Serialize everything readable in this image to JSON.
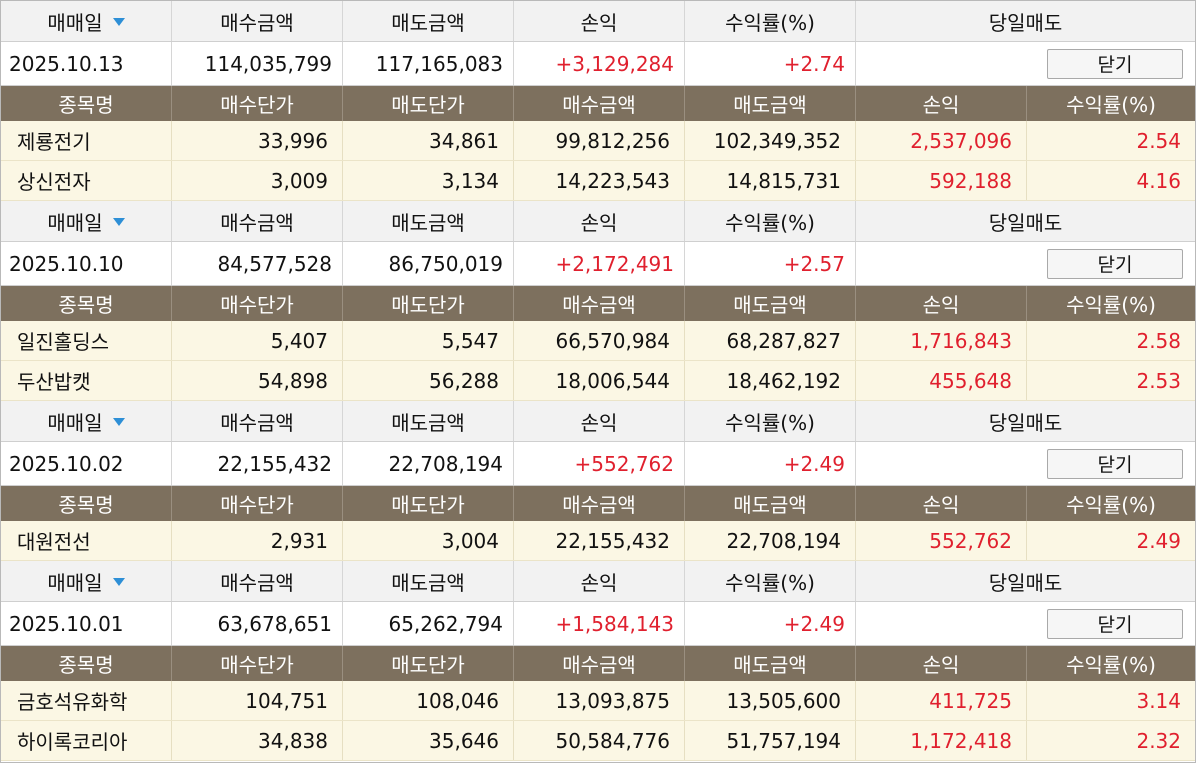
{
  "columns": {
    "trade_date": "매매일",
    "buy_amount": "매수금액",
    "sell_amount": "매도금액",
    "pnl": "손익",
    "return_pct": "수익률(%)",
    "same_day_sell": "당일매도",
    "stock_name": "종목명",
    "buy_price": "매수단가",
    "sell_price": "매도단가"
  },
  "close_label": "닫기",
  "colors": {
    "header_bg": "#f2f2f2",
    "detail_header_bg": "#7d705e",
    "item_bg": "#fbf7e4",
    "profit": "#e0202e",
    "sort_icon": "#2e8fd6"
  },
  "groups": [
    {
      "date": "2025.10.13",
      "buy_amount": "114,035,799",
      "sell_amount": "117,165,083",
      "pnl": "+3,129,284",
      "return_pct": "+2.74",
      "items": [
        {
          "name": "제룡전기",
          "buy_price": "33,996",
          "sell_price": "34,861",
          "buy_amount": "99,812,256",
          "sell_amount": "102,349,352",
          "pnl": "2,537,096",
          "return_pct": "2.54"
        },
        {
          "name": "상신전자",
          "buy_price": "3,009",
          "sell_price": "3,134",
          "buy_amount": "14,223,543",
          "sell_amount": "14,815,731",
          "pnl": "592,188",
          "return_pct": "4.16"
        }
      ]
    },
    {
      "date": "2025.10.10",
      "buy_amount": "84,577,528",
      "sell_amount": "86,750,019",
      "pnl": "+2,172,491",
      "return_pct": "+2.57",
      "items": [
        {
          "name": "일진홀딩스",
          "buy_price": "5,407",
          "sell_price": "5,547",
          "buy_amount": "66,570,984",
          "sell_amount": "68,287,827",
          "pnl": "1,716,843",
          "return_pct": "2.58"
        },
        {
          "name": "두산밥캣",
          "buy_price": "54,898",
          "sell_price": "56,288",
          "buy_amount": "18,006,544",
          "sell_amount": "18,462,192",
          "pnl": "455,648",
          "return_pct": "2.53"
        }
      ]
    },
    {
      "date": "2025.10.02",
      "buy_amount": "22,155,432",
      "sell_amount": "22,708,194",
      "pnl": "+552,762",
      "return_pct": "+2.49",
      "items": [
        {
          "name": "대원전선",
          "buy_price": "2,931",
          "sell_price": "3,004",
          "buy_amount": "22,155,432",
          "sell_amount": "22,708,194",
          "pnl": "552,762",
          "return_pct": "2.49"
        }
      ]
    },
    {
      "date": "2025.10.01",
      "buy_amount": "63,678,651",
      "sell_amount": "65,262,794",
      "pnl": "+1,584,143",
      "return_pct": "+2.49",
      "items": [
        {
          "name": "금호석유화학",
          "buy_price": "104,751",
          "sell_price": "108,046",
          "buy_amount": "13,093,875",
          "sell_amount": "13,505,600",
          "pnl": "411,725",
          "return_pct": "3.14"
        },
        {
          "name": "하이록코리아",
          "buy_price": "34,838",
          "sell_price": "35,646",
          "buy_amount": "50,584,776",
          "sell_amount": "51,757,194",
          "pnl": "1,172,418",
          "return_pct": "2.32"
        }
      ]
    }
  ]
}
